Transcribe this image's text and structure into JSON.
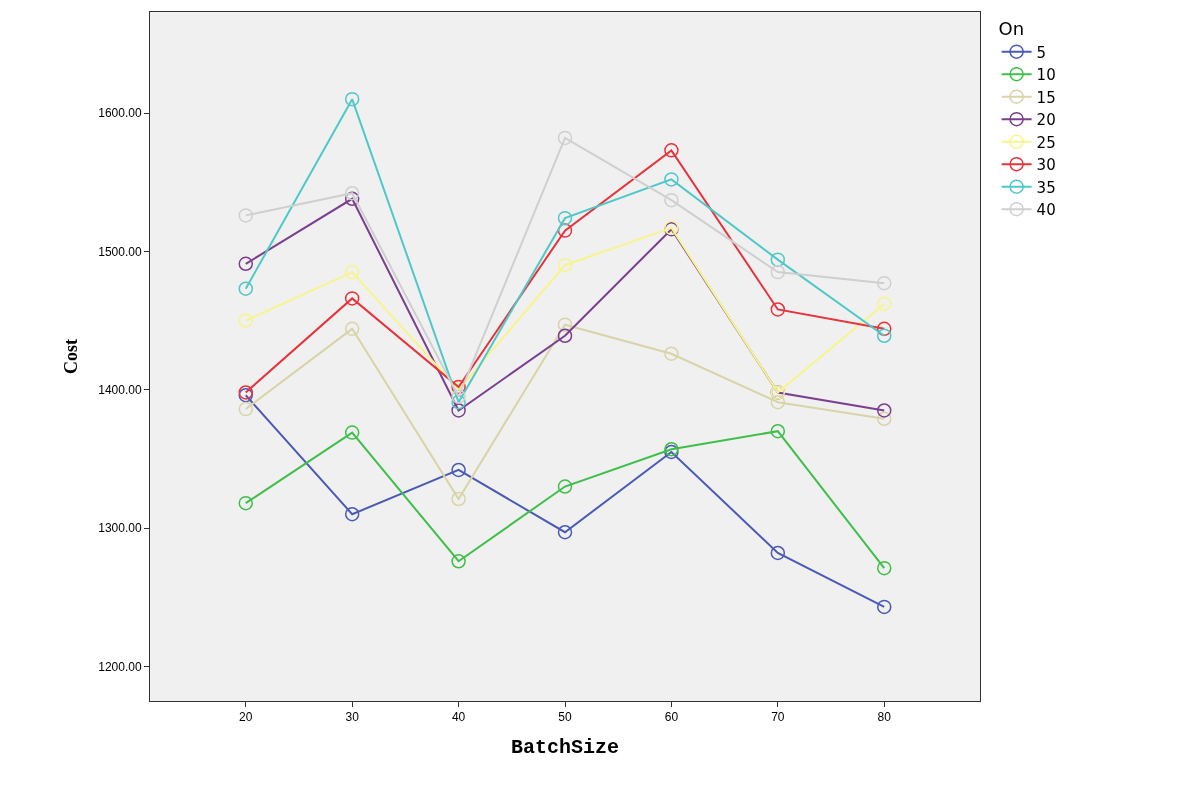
{
  "chart_data": {
    "type": "line",
    "xlabel": "BatchSize",
    "ylabel": "Cost",
    "legend_title": "On",
    "x": [
      20,
      30,
      40,
      50,
      60,
      70,
      80
    ],
    "series": [
      {
        "name": "5",
        "color": "#4a5bb5",
        "values": [
          1396,
          1310,
          1342,
          1297,
          1355,
          1282,
          1243
        ]
      },
      {
        "name": "10",
        "color": "#3fbf4a",
        "values": [
          1318,
          1369,
          1276,
          1330,
          1357,
          1370,
          1271
        ]
      },
      {
        "name": "15",
        "color": "#d8d4a8",
        "values": [
          1386,
          1444,
          1321,
          1447,
          1426,
          1391,
          1379
        ]
      },
      {
        "name": "20",
        "color": "#7a3f8f",
        "values": [
          1491,
          1538,
          1385,
          1439,
          1516,
          1398,
          1385
        ]
      },
      {
        "name": "25",
        "color": "#f8f48c",
        "values": [
          1450,
          1485,
          1400,
          1490,
          1517,
          1398,
          1462
        ]
      },
      {
        "name": "30",
        "color": "#e8323c",
        "values": [
          1398,
          1466,
          1402,
          1515,
          1573,
          1458,
          1444
        ]
      },
      {
        "name": "35",
        "color": "#4fc8c8",
        "values": [
          1473,
          1610,
          1391,
          1524,
          1552,
          1494,
          1439
        ]
      },
      {
        "name": "40",
        "color": "#cfcfcf",
        "values": [
          1526,
          1542,
          1395,
          1582,
          1537,
          1485,
          1477
        ]
      }
    ],
    "xlim": [
      11,
      89
    ],
    "xticks": [
      20,
      30,
      40,
      50,
      60,
      70,
      80
    ],
    "ylim": [
      1175,
      1673
    ],
    "yticks": [
      {
        "value": 1200,
        "label": "1200.00"
      },
      {
        "value": 1300,
        "label": "1300.00"
      },
      {
        "value": 1400,
        "label": "1400.00"
      },
      {
        "value": 1500,
        "label": "1500.00"
      },
      {
        "value": 1600,
        "label": "1600.00"
      }
    ],
    "grid": false,
    "legend": "top right",
    "marker": "circle",
    "line_style": "solid"
  }
}
